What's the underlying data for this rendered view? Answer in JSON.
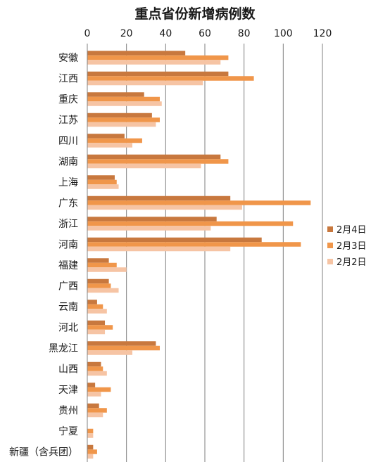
{
  "chart_data": {
    "type": "bar",
    "orientation": "horizontal",
    "title": "重点省份新增病例数",
    "xlim": [
      0,
      120
    ],
    "xticks": [
      0,
      20,
      40,
      60,
      80,
      100,
      120
    ],
    "grid": true,
    "legend_position": "right",
    "categories": [
      "安徽",
      "江西",
      "重庆",
      "江苏",
      "四川",
      "湖南",
      "上海",
      "广东",
      "浙江",
      "河南",
      "福建",
      "广西",
      "云南",
      "河北",
      "黑龙江",
      "山西",
      "天津",
      "贵州",
      "宁夏",
      "新疆（含兵团）"
    ],
    "series": [
      {
        "name": "2月4日",
        "color": "#c8783e",
        "values": [
          50,
          72,
          29,
          33,
          19,
          68,
          14,
          73,
          66,
          89,
          11,
          11,
          5,
          9,
          35,
          7,
          4,
          6,
          0,
          3
        ]
      },
      {
        "name": "2月3日",
        "color": "#f0964a",
        "values": [
          72,
          85,
          37,
          37,
          28,
          72,
          15,
          114,
          105,
          109,
          15,
          12,
          8,
          13,
          37,
          8,
          12,
          10,
          3,
          5
        ]
      },
      {
        "name": "2月2日",
        "color": "#f6c4a4",
        "values": [
          68,
          59,
          38,
          35,
          23,
          58,
          16,
          79,
          63,
          73,
          20,
          16,
          10,
          9,
          23,
          10,
          7,
          8,
          3,
          3
        ]
      }
    ]
  }
}
